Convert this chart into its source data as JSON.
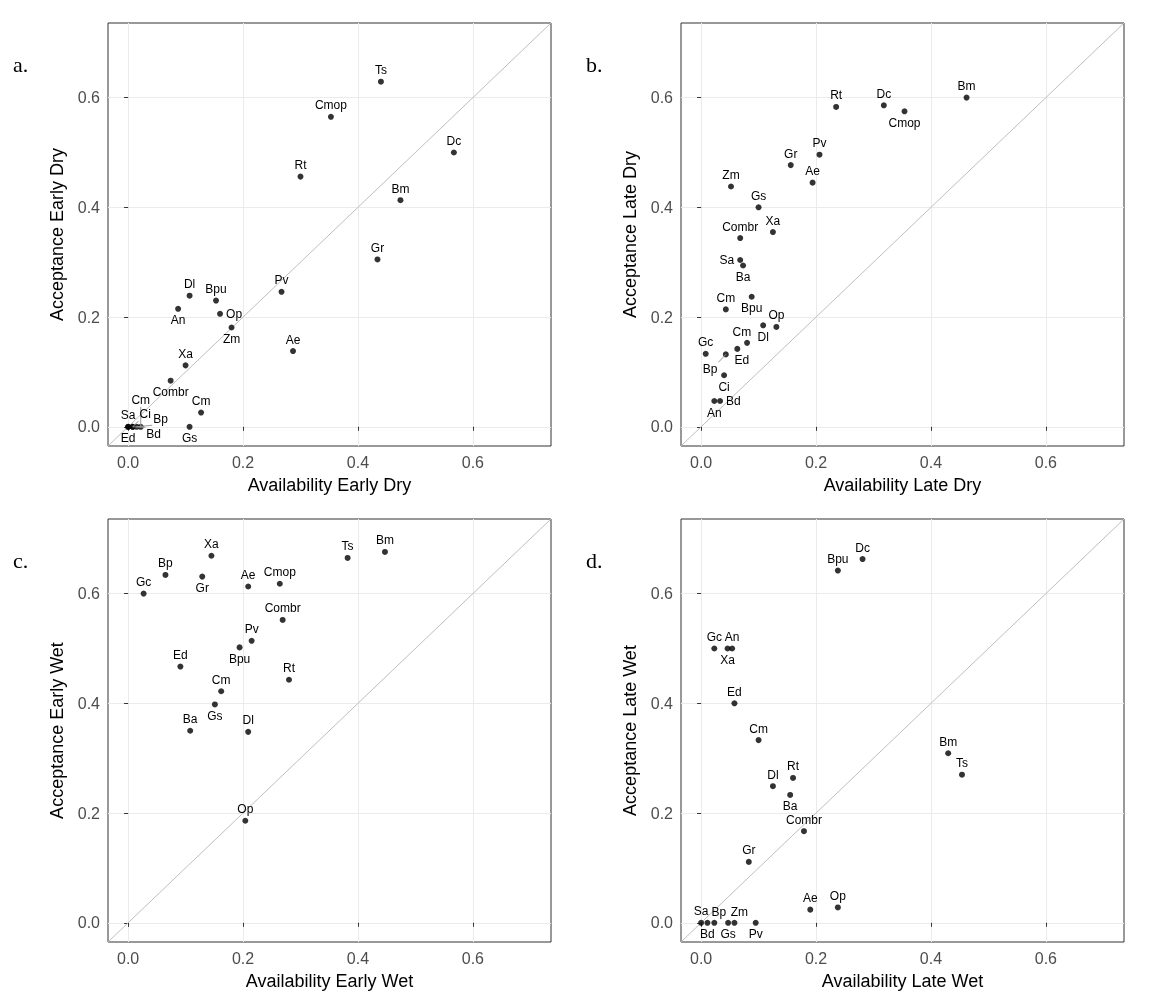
{
  "chart_data": [
    {
      "type": "scatter",
      "title": "a.",
      "xlabel": "Availability Early Dry",
      "ylabel": "Acceptance Early Dry",
      "xlim": [
        -0.035,
        0.736
      ],
      "ylim": [
        -0.035,
        0.736
      ],
      "xticks": [
        {
          "value": 0,
          "label": "0.0"
        },
        {
          "value": 0.2,
          "label": "0.2"
        },
        {
          "value": 0.4,
          "label": "0.4"
        },
        {
          "value": 0.6,
          "label": "0.6"
        }
      ],
      "yticks": [
        {
          "value": 0,
          "label": "0.0"
        },
        {
          "value": 0.2,
          "label": "0.2"
        },
        {
          "value": 0.4,
          "label": "0.4"
        },
        {
          "value": 0.6,
          "label": "0.6"
        }
      ],
      "grid": true,
      "marker": "circle",
      "series": [
        {
          "color": "#000000",
          "x": [
            0.44,
            0.353,
            0.567,
            0.3,
            0.474,
            0.434,
            0.267,
            0.107,
            0.153,
            0.087,
            0.16,
            0.18,
            0.287,
            0.1,
            0.074,
            0.127,
            0.107,
            0,
            0,
            0.008,
            0.008,
            0.015,
            0.022
          ],
          "values": [
            0.629,
            0.565,
            0.5,
            0.456,
            0.413,
            0.305,
            0.246,
            0.239,
            0.23,
            0.215,
            0.206,
            0.181,
            0.138,
            0.112,
            0.084,
            0.026,
            0,
            0,
            0,
            0,
            0,
            0,
            0
          ]
        },
        {
          "type": "line",
          "marker": "none",
          "color": "#bebebe",
          "x": [
            -0.035,
            0.736
          ],
          "values": [
            -0.035,
            0.736
          ]
        }
      ],
      "annotations": [
        {
          "text": "Ts",
          "x": 0.44,
          "y": 0.629
        },
        {
          "text": "Cmop",
          "x": 0.353,
          "y": 0.565
        },
        {
          "text": "Dc",
          "x": 0.567,
          "y": 0.5
        },
        {
          "text": "Rt",
          "x": 0.3,
          "y": 0.456
        },
        {
          "text": "Bm",
          "x": 0.474,
          "y": 0.413
        },
        {
          "text": "Gr",
          "x": 0.434,
          "y": 0.305
        },
        {
          "text": "Pv",
          "x": 0.267,
          "y": 0.246
        },
        {
          "text": "Dl",
          "x": 0.107,
          "y": 0.239
        },
        {
          "text": "Bpu",
          "x": 0.153,
          "y": 0.23
        },
        {
          "text": "An",
          "x": 0.087,
          "y": 0.215
        },
        {
          "text": "Op",
          "x": 0.16,
          "y": 0.206
        },
        {
          "text": "Zm",
          "x": 0.18,
          "y": 0.181
        },
        {
          "text": "Ae",
          "x": 0.287,
          "y": 0.138
        },
        {
          "text": "Xa",
          "x": 0.1,
          "y": 0.112
        },
        {
          "text": "Combr",
          "x": 0.074,
          "y": 0.084
        },
        {
          "text": "Cm",
          "x": 0.127,
          "y": 0.026
        },
        {
          "text": "Gs",
          "x": 0.107,
          "y": 0
        },
        {
          "text": "Sa",
          "x": 0,
          "y": 0
        },
        {
          "text": "Ed",
          "x": 0,
          "y": 0
        },
        {
          "text": "Ci",
          "x": 0.008,
          "y": 0
        },
        {
          "text": "Bd",
          "x": 0.008,
          "y": 0
        },
        {
          "text": "Bp",
          "x": 0.015,
          "y": 0
        },
        {
          "text": "Cm",
          "x": 0.022,
          "y": 0
        }
      ]
    },
    {
      "type": "scatter",
      "title": "b.",
      "xlabel": "Availability Late Dry",
      "ylabel": "Acceptance Late Dry",
      "xlim": [
        -0.035,
        0.736
      ],
      "ylim": [
        -0.035,
        0.736
      ],
      "xticks": [
        {
          "value": 0,
          "label": "0.0"
        },
        {
          "value": 0.2,
          "label": "0.2"
        },
        {
          "value": 0.4,
          "label": "0.4"
        },
        {
          "value": 0.6,
          "label": "0.6"
        }
      ],
      "yticks": [
        {
          "value": 0,
          "label": "0.0"
        },
        {
          "value": 0.2,
          "label": "0.2"
        },
        {
          "value": 0.4,
          "label": "0.4"
        },
        {
          "value": 0.6,
          "label": "0.6"
        }
      ],
      "grid": true,
      "marker": "circle",
      "series": [
        {
          "color": "#000000",
          "x": [
            0.462,
            0.235,
            0.318,
            0.354,
            0.206,
            0.156,
            0.052,
            0.194,
            0.1,
            0.125,
            0.068,
            0.068,
            0.073,
            0.088,
            0.043,
            0.108,
            0.131,
            0.08,
            0.063,
            0.008,
            0.043,
            0.04,
            0.023,
            0.033
          ],
          "values": [
            0.6,
            0.583,
            0.586,
            0.575,
            0.496,
            0.477,
            0.438,
            0.445,
            0.4,
            0.355,
            0.344,
            0.304,
            0.294,
            0.237,
            0.214,
            0.185,
            0.182,
            0.153,
            0.142,
            0.133,
            0.132,
            0.094,
            0.047,
            0.047
          ]
        },
        {
          "type": "line",
          "marker": "none",
          "color": "#bebebe",
          "x": [
            -0.035,
            0.736
          ],
          "values": [
            -0.035,
            0.736
          ]
        }
      ],
      "annotations": [
        {
          "text": "Bm",
          "x": 0.462,
          "y": 0.6
        },
        {
          "text": "Rt",
          "x": 0.235,
          "y": 0.583
        },
        {
          "text": "Dc",
          "x": 0.318,
          "y": 0.586
        },
        {
          "text": "Cmop",
          "x": 0.354,
          "y": 0.575
        },
        {
          "text": "Pv",
          "x": 0.206,
          "y": 0.496
        },
        {
          "text": "Gr",
          "x": 0.156,
          "y": 0.477
        },
        {
          "text": "Zm",
          "x": 0.052,
          "y": 0.438
        },
        {
          "text": "Ae",
          "x": 0.194,
          "y": 0.445
        },
        {
          "text": "Gs",
          "x": 0.1,
          "y": 0.4
        },
        {
          "text": "Xa",
          "x": 0.125,
          "y": 0.355
        },
        {
          "text": "Combr",
          "x": 0.068,
          "y": 0.344
        },
        {
          "text": "Sa",
          "x": 0.068,
          "y": 0.304
        },
        {
          "text": "Ba",
          "x": 0.073,
          "y": 0.294
        },
        {
          "text": "Bpu",
          "x": 0.088,
          "y": 0.237
        },
        {
          "text": "Cm",
          "x": 0.043,
          "y": 0.214
        },
        {
          "text": "Dl",
          "x": 0.108,
          "y": 0.185
        },
        {
          "text": "Op",
          "x": 0.131,
          "y": 0.182
        },
        {
          "text": "Cm",
          "x": 0.08,
          "y": 0.153
        },
        {
          "text": "Ed",
          "x": 0.063,
          "y": 0.142
        },
        {
          "text": "Gc",
          "x": 0.008,
          "y": 0.133
        },
        {
          "text": "Bp",
          "x": 0.043,
          "y": 0.132
        },
        {
          "text": "Ci",
          "x": 0.04,
          "y": 0.094
        },
        {
          "text": "An",
          "x": 0.023,
          "y": 0.047
        },
        {
          "text": "Bd",
          "x": 0.033,
          "y": 0.047
        }
      ]
    },
    {
      "type": "scatter",
      "title": "c.",
      "xlabel": "Availability Early Wet",
      "ylabel": "Acceptance Early Wet",
      "xlim": [
        -0.035,
        0.736
      ],
      "ylim": [
        -0.035,
        0.736
      ],
      "xticks": [
        {
          "value": 0,
          "label": "0.0"
        },
        {
          "value": 0.2,
          "label": "0.2"
        },
        {
          "value": 0.4,
          "label": "0.4"
        },
        {
          "value": 0.6,
          "label": "0.6"
        }
      ],
      "yticks": [
        {
          "value": 0,
          "label": "0.0"
        },
        {
          "value": 0.2,
          "label": "0.2"
        },
        {
          "value": 0.4,
          "label": "0.4"
        },
        {
          "value": 0.6,
          "label": "0.6"
        }
      ],
      "grid": true,
      "marker": "circle",
      "series": [
        {
          "color": "#000000",
          "x": [
            0.145,
            0.065,
            0.129,
            0.027,
            0.209,
            0.264,
            0.382,
            0.447,
            0.269,
            0.215,
            0.194,
            0.091,
            0.28,
            0.162,
            0.151,
            0.108,
            0.209,
            0.204
          ],
          "values": [
            0.669,
            0.634,
            0.631,
            0.6,
            0.613,
            0.618,
            0.665,
            0.676,
            0.552,
            0.514,
            0.502,
            0.467,
            0.443,
            0.422,
            0.398,
            0.35,
            0.348,
            0.186
          ]
        },
        {
          "type": "line",
          "marker": "none",
          "color": "#bebebe",
          "x": [
            -0.035,
            0.736
          ],
          "values": [
            -0.035,
            0.736
          ]
        }
      ],
      "annotations": [
        {
          "text": "Xa",
          "x": 0.145,
          "y": 0.669
        },
        {
          "text": "Bp",
          "x": 0.065,
          "y": 0.634
        },
        {
          "text": "Gr",
          "x": 0.129,
          "y": 0.631
        },
        {
          "text": "Gc",
          "x": 0.027,
          "y": 0.6
        },
        {
          "text": "Ae",
          "x": 0.209,
          "y": 0.613
        },
        {
          "text": "Cmop",
          "x": 0.264,
          "y": 0.618
        },
        {
          "text": "Ts",
          "x": 0.382,
          "y": 0.665
        },
        {
          "text": "Bm",
          "x": 0.447,
          "y": 0.676
        },
        {
          "text": "Combr",
          "x": 0.269,
          "y": 0.552
        },
        {
          "text": "Pv",
          "x": 0.215,
          "y": 0.514
        },
        {
          "text": "Bpu",
          "x": 0.194,
          "y": 0.502
        },
        {
          "text": "Ed",
          "x": 0.091,
          "y": 0.467
        },
        {
          "text": "Rt",
          "x": 0.28,
          "y": 0.443
        },
        {
          "text": "Cm",
          "x": 0.162,
          "y": 0.422
        },
        {
          "text": "Gs",
          "x": 0.151,
          "y": 0.398
        },
        {
          "text": "Ba",
          "x": 0.108,
          "y": 0.35
        },
        {
          "text": "Dl",
          "x": 0.209,
          "y": 0.348
        },
        {
          "text": "Op",
          "x": 0.204,
          "y": 0.186
        }
      ]
    },
    {
      "type": "scatter",
      "title": "d.",
      "xlabel": "Availability Late Wet",
      "ylabel": "Acceptance Late Wet",
      "xlim": [
        -0.035,
        0.736
      ],
      "ylim": [
        -0.035,
        0.736
      ],
      "xticks": [
        {
          "value": 0,
          "label": "0.0"
        },
        {
          "value": 0.2,
          "label": "0.2"
        },
        {
          "value": 0.4,
          "label": "0.4"
        },
        {
          "value": 0.6,
          "label": "0.6"
        }
      ],
      "yticks": [
        {
          "value": 0,
          "label": "0.0"
        },
        {
          "value": 0.2,
          "label": "0.2"
        },
        {
          "value": 0.4,
          "label": "0.4"
        },
        {
          "value": 0.6,
          "label": "0.6"
        }
      ],
      "grid": true,
      "marker": "circle",
      "series": [
        {
          "color": "#000000",
          "x": [
            0.281,
            0.238,
            0.023,
            0.046,
            0.054,
            0.058,
            0.1,
            0.43,
            0.454,
            0.16,
            0.125,
            0.155,
            0.179,
            0.083,
            0.19,
            0.238,
            0,
            0.011,
            0.023,
            0.047,
            0.058,
            0.095
          ],
          "values": [
            0.663,
            0.642,
            0.5,
            0.5,
            0.5,
            0.4,
            0.333,
            0.309,
            0.27,
            0.264,
            0.249,
            0.233,
            0.167,
            0.111,
            0.024,
            0.028,
            0,
            0,
            0,
            0,
            0,
            0
          ]
        },
        {
          "type": "line",
          "marker": "none",
          "color": "#bebebe",
          "x": [
            -0.035,
            0.736
          ],
          "values": [
            -0.035,
            0.736
          ]
        }
      ],
      "annotations": [
        {
          "text": "Dc",
          "x": 0.281,
          "y": 0.663
        },
        {
          "text": "Bpu",
          "x": 0.238,
          "y": 0.642
        },
        {
          "text": "Gc",
          "x": 0.023,
          "y": 0.5
        },
        {
          "text": "Xa",
          "x": 0.046,
          "y": 0.5
        },
        {
          "text": "An",
          "x": 0.054,
          "y": 0.5
        },
        {
          "text": "Ed",
          "x": 0.058,
          "y": 0.4
        },
        {
          "text": "Cm",
          "x": 0.1,
          "y": 0.333
        },
        {
          "text": "Bm",
          "x": 0.43,
          "y": 0.309
        },
        {
          "text": "Ts",
          "x": 0.454,
          "y": 0.27
        },
        {
          "text": "Rt",
          "x": 0.16,
          "y": 0.264
        },
        {
          "text": "Dl",
          "x": 0.125,
          "y": 0.249
        },
        {
          "text": "Ba",
          "x": 0.155,
          "y": 0.233
        },
        {
          "text": "Combr",
          "x": 0.179,
          "y": 0.167
        },
        {
          "text": "Gr",
          "x": 0.083,
          "y": 0.111
        },
        {
          "text": "Ae",
          "x": 0.19,
          "y": 0.024
        },
        {
          "text": "Op",
          "x": 0.238,
          "y": 0.028
        },
        {
          "text": "Sa",
          "x": 0,
          "y": 0
        },
        {
          "text": "Bd",
          "x": 0.011,
          "y": 0
        },
        {
          "text": "Bp",
          "x": 0.023,
          "y": 0
        },
        {
          "text": "Gs",
          "x": 0.047,
          "y": 0
        },
        {
          "text": "Zm",
          "x": 0.058,
          "y": 0
        },
        {
          "text": "Pv",
          "x": 0.095,
          "y": 0
        }
      ]
    }
  ]
}
